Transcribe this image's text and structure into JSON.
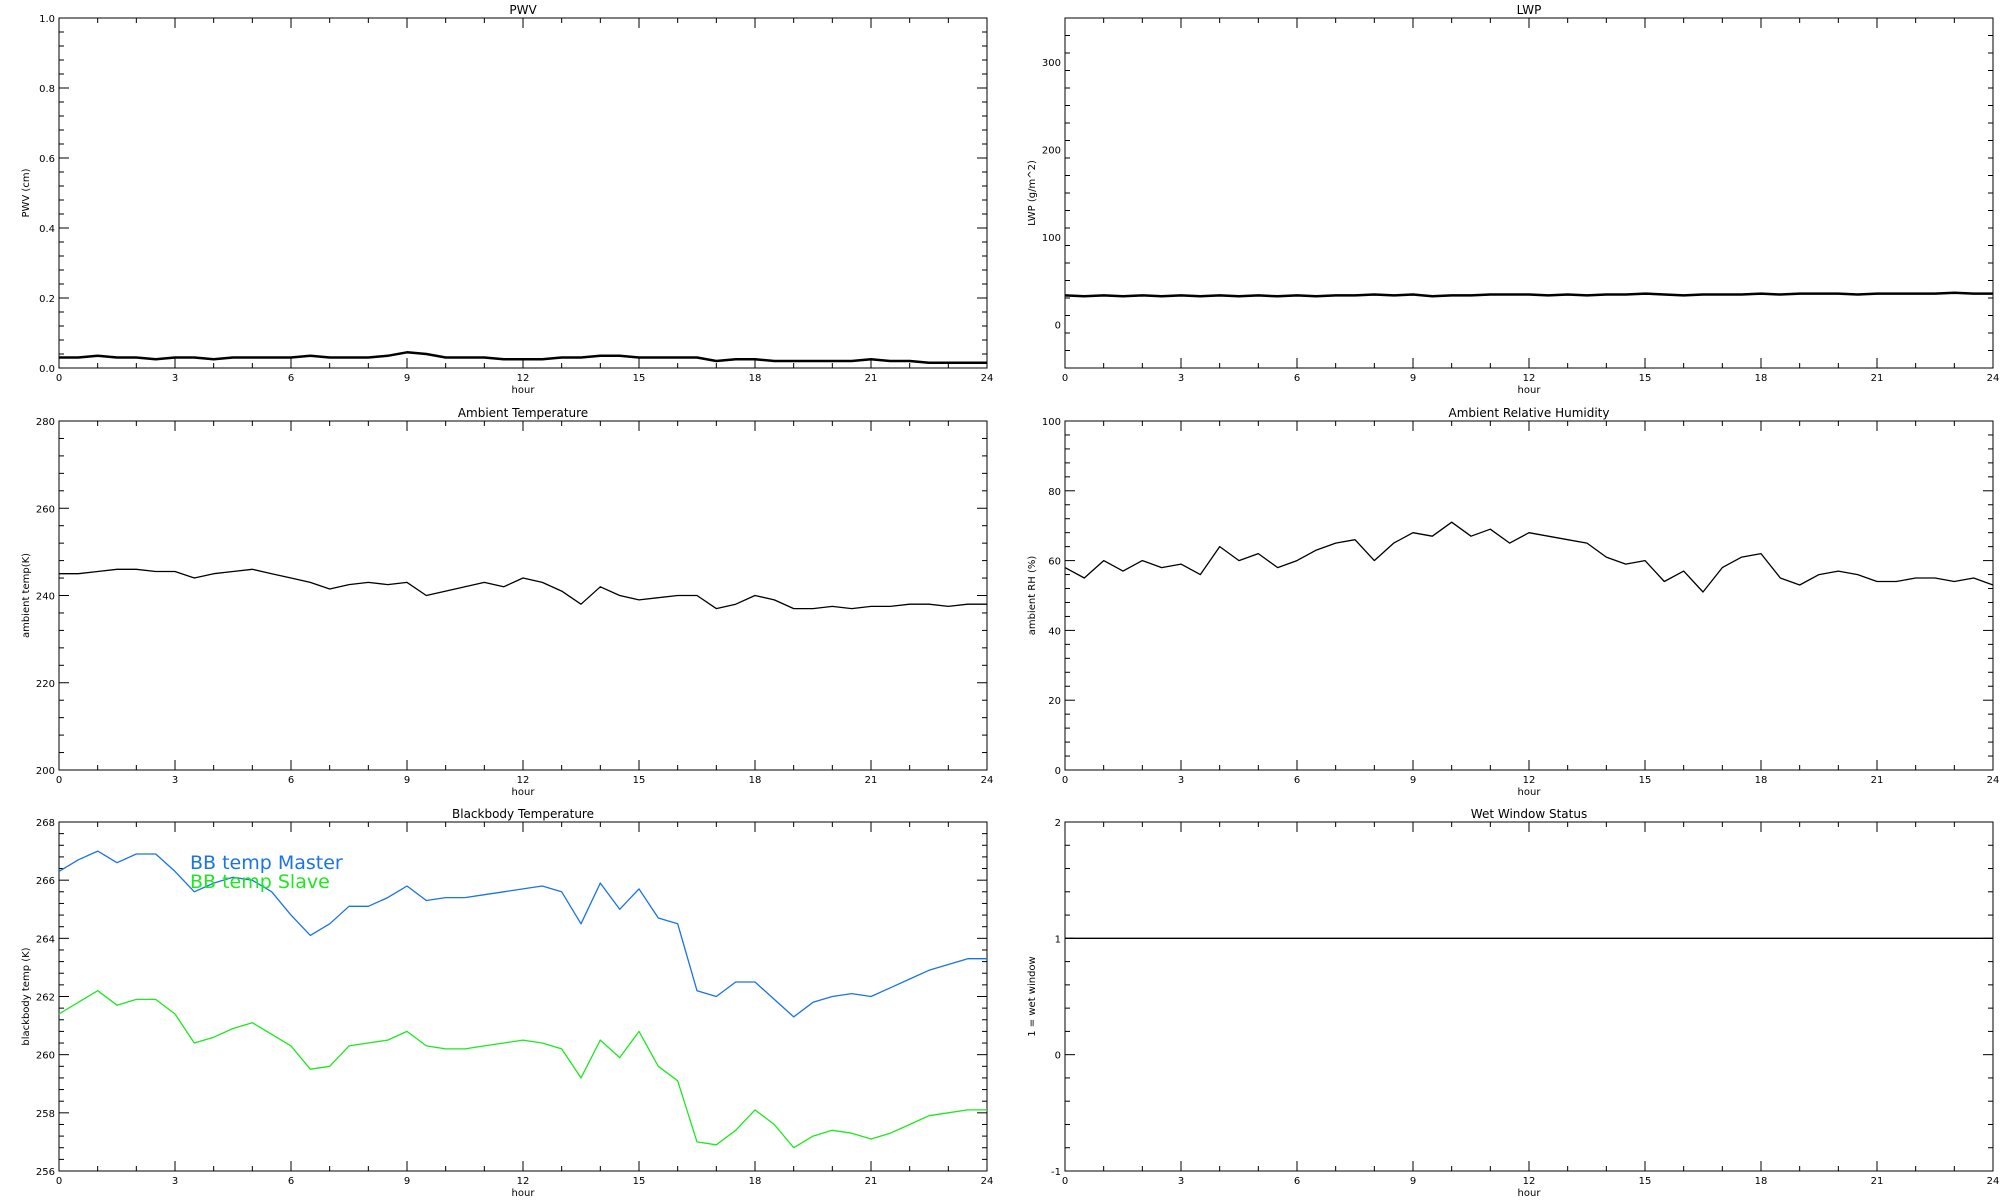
{
  "chart_data": [
    {
      "type": "line",
      "title": "PWV",
      "xlabel": "hour",
      "ylabel": "PWV (cm)",
      "xlim": [
        0,
        24
      ],
      "ylim": [
        0,
        1.0
      ],
      "xticks": [
        0,
        3,
        6,
        9,
        12,
        15,
        18,
        21,
        24
      ],
      "yticks": [
        0,
        0.2,
        0.4,
        0.6,
        0.8,
        1.0
      ],
      "ytick_labels": [
        "0.0",
        "0.2",
        "0.4",
        "0.6",
        "0.8",
        "1.0"
      ],
      "grid": false,
      "series": [
        {
          "color": "#000000",
          "x": [
            0,
            0.5,
            1,
            1.5,
            2,
            2.5,
            3,
            3.5,
            4,
            4.5,
            5,
            5.5,
            6,
            6.5,
            7,
            7.5,
            8,
            8.5,
            9,
            9.5,
            10,
            10.5,
            11,
            11.5,
            12,
            12.5,
            13,
            13.5,
            14,
            14.5,
            15,
            15.5,
            16,
            16.5,
            17,
            17.5,
            18,
            18.5,
            19,
            19.5,
            20,
            20.5,
            21,
            21.5,
            22,
            22.5,
            23,
            23.5,
            24
          ],
          "values": [
            0.03,
            0.03,
            0.035,
            0.03,
            0.03,
            0.025,
            0.03,
            0.03,
            0.025,
            0.03,
            0.03,
            0.03,
            0.03,
            0.035,
            0.03,
            0.03,
            0.03,
            0.035,
            0.045,
            0.04,
            0.03,
            0.03,
            0.03,
            0.025,
            0.025,
            0.025,
            0.03,
            0.03,
            0.035,
            0.035,
            0.03,
            0.03,
            0.03,
            0.03,
            0.02,
            0.025,
            0.025,
            0.02,
            0.02,
            0.02,
            0.02,
            0.02,
            0.025,
            0.02,
            0.02,
            0.015,
            0.015,
            0.015,
            0.015
          ]
        }
      ]
    },
    {
      "type": "line",
      "title": "LWP",
      "xlabel": "hour",
      "ylabel": "LWP (g/m^2)",
      "xlim": [
        0,
        24
      ],
      "ylim": [
        -50,
        350
      ],
      "xticks": [
        0,
        3,
        6,
        9,
        12,
        15,
        18,
        21,
        24
      ],
      "yticks": [
        0,
        100,
        200,
        300
      ],
      "ytick_labels": [
        "0",
        "100",
        "200",
        "300"
      ],
      "grid": false,
      "series": [
        {
          "color": "#000000",
          "x": [
            0,
            0.5,
            1,
            1.5,
            2,
            2.5,
            3,
            3.5,
            4,
            4.5,
            5,
            5.5,
            6,
            6.5,
            7,
            7.5,
            8,
            8.5,
            9,
            9.5,
            10,
            10.5,
            11,
            11.5,
            12,
            12.5,
            13,
            13.5,
            14,
            14.5,
            15,
            15.5,
            16,
            16.5,
            17,
            17.5,
            18,
            18.5,
            19,
            19.5,
            20,
            20.5,
            21,
            21.5,
            22,
            22.5,
            23,
            23.5,
            24
          ],
          "values": [
            33,
            32,
            33,
            32,
            33,
            32,
            33,
            32,
            33,
            32,
            33,
            32,
            33,
            32,
            33,
            33,
            34,
            33,
            34,
            32,
            33,
            33,
            34,
            34,
            34,
            33,
            34,
            33,
            34,
            34,
            35,
            34,
            33,
            34,
            34,
            34,
            35,
            34,
            35,
            35,
            35,
            34,
            35,
            35,
            35,
            35,
            36,
            35,
            35
          ]
        }
      ]
    },
    {
      "type": "line",
      "title": "Ambient Temperature",
      "xlabel": "hour",
      "ylabel": "ambient temp(K)",
      "xlim": [
        0,
        24
      ],
      "ylim": [
        200,
        280
      ],
      "xticks": [
        0,
        3,
        6,
        9,
        12,
        15,
        18,
        21,
        24
      ],
      "yticks": [
        200,
        220,
        240,
        260,
        280
      ],
      "ytick_labels": [
        "200",
        "220",
        "240",
        "260",
        "280"
      ],
      "grid": false,
      "series": [
        {
          "color": "#000000",
          "x": [
            0,
            0.5,
            1,
            1.5,
            2,
            2.5,
            3,
            3.5,
            4,
            4.5,
            5,
            5.5,
            6,
            6.5,
            7,
            7.5,
            8,
            8.5,
            9,
            9.5,
            10,
            10.5,
            11,
            11.5,
            12,
            12.5,
            13,
            13.5,
            14,
            14.5,
            15,
            15.5,
            16,
            16.5,
            17,
            17.5,
            18,
            18.5,
            19,
            19.5,
            20,
            20.5,
            21,
            21.5,
            22,
            22.5,
            23,
            23.5,
            24
          ],
          "values": [
            245,
            245,
            245.5,
            246,
            246,
            245.5,
            245.5,
            244,
            245,
            245.5,
            246,
            245,
            244,
            243,
            241.5,
            242.5,
            243,
            242.5,
            243,
            240,
            241,
            242,
            243,
            242,
            244,
            243,
            241,
            238,
            242,
            240,
            239,
            239.5,
            240,
            240,
            237,
            238,
            240,
            239,
            237,
            237,
            237.5,
            237,
            237.5,
            237.5,
            238,
            238,
            237.5,
            238,
            238
          ]
        }
      ]
    },
    {
      "type": "line",
      "title": "Ambient Relative Humidity",
      "xlabel": "hour",
      "ylabel": "ambient RH (%)",
      "xlim": [
        0,
        24
      ],
      "ylim": [
        0,
        100
      ],
      "xticks": [
        0,
        3,
        6,
        9,
        12,
        15,
        18,
        21,
        24
      ],
      "yticks": [
        0,
        20,
        40,
        60,
        80,
        100
      ],
      "ytick_labels": [
        "0",
        "20",
        "40",
        "60",
        "80",
        "100"
      ],
      "grid": false,
      "series": [
        {
          "color": "#000000",
          "x": [
            0,
            0.5,
            1,
            1.5,
            2,
            2.5,
            3,
            3.5,
            4,
            4.5,
            5,
            5.5,
            6,
            6.5,
            7,
            7.5,
            8,
            8.5,
            9,
            9.5,
            10,
            10.5,
            11,
            11.5,
            12,
            12.5,
            13,
            13.5,
            14,
            14.5,
            15,
            15.5,
            16,
            16.5,
            17,
            17.5,
            18,
            18.5,
            19,
            19.5,
            20,
            20.5,
            21,
            21.5,
            22,
            22.5,
            23,
            23.5,
            24
          ],
          "values": [
            58,
            55,
            60,
            57,
            60,
            58,
            59,
            56,
            64,
            60,
            62,
            58,
            60,
            63,
            65,
            66,
            60,
            65,
            68,
            67,
            71,
            67,
            69,
            65,
            68,
            67,
            66,
            65,
            61,
            59,
            60,
            54,
            57,
            51,
            58,
            61,
            62,
            55,
            53,
            56,
            57,
            56,
            54,
            54,
            55,
            55,
            54,
            55,
            53
          ]
        }
      ]
    },
    {
      "type": "line",
      "title": "Blackbody Temperature",
      "xlabel": "hour",
      "ylabel": "blackbody temp (K)",
      "xlim": [
        0,
        24
      ],
      "ylim": [
        256,
        268
      ],
      "xticks": [
        0,
        3,
        6,
        9,
        12,
        15,
        18,
        21,
        24
      ],
      "yticks": [
        256,
        258,
        260,
        262,
        264,
        266,
        268
      ],
      "ytick_labels": [
        "256",
        "258",
        "260",
        "262",
        "264",
        "266",
        "268"
      ],
      "grid": false,
      "series": [
        {
          "name": "BB temp Master",
          "color": "#1a73e8",
          "x": [
            0,
            0.5,
            1,
            1.5,
            2,
            2.5,
            3,
            3.5,
            4,
            4.5,
            5,
            5.5,
            6,
            6.5,
            7,
            7.5,
            8,
            8.5,
            9,
            9.5,
            10,
            10.5,
            11,
            11.5,
            12,
            12.5,
            13,
            13.5,
            14,
            14.5,
            15,
            15.5,
            16,
            16.5,
            17,
            17.5,
            18,
            18.5,
            19,
            19.5,
            20,
            20.5,
            21,
            21.5,
            22,
            22.5,
            23,
            23.5,
            24
          ],
          "values": [
            266.3,
            266.7,
            267.0,
            266.6,
            266.9,
            266.9,
            266.3,
            265.6,
            265.9,
            266.1,
            266.0,
            265.6,
            264.8,
            264.1,
            264.5,
            265.1,
            265.1,
            265.4,
            265.8,
            265.3,
            265.4,
            265.4,
            265.5,
            265.6,
            265.7,
            265.8,
            265.6,
            264.5,
            265.9,
            265.0,
            265.7,
            264.7,
            264.5,
            262.2,
            262.0,
            262.5,
            262.5,
            261.9,
            261.3,
            261.8,
            262.0,
            262.1,
            262.0,
            262.3,
            262.6,
            262.9,
            263.1,
            263.3,
            263.3
          ]
        },
        {
          "name": "BB temp Slave",
          "color": "#1ee81e",
          "x": [
            0,
            0.5,
            1,
            1.5,
            2,
            2.5,
            3,
            3.5,
            4,
            4.5,
            5,
            5.5,
            6,
            6.5,
            7,
            7.5,
            8,
            8.5,
            9,
            9.5,
            10,
            10.5,
            11,
            11.5,
            12,
            12.5,
            13,
            13.5,
            14,
            14.5,
            15,
            15.5,
            16,
            16.5,
            17,
            17.5,
            18,
            18.5,
            19,
            19.5,
            20,
            20.5,
            21,
            21.5,
            22,
            22.5,
            23,
            23.5,
            24
          ],
          "values": [
            261.4,
            261.8,
            262.2,
            261.7,
            261.9,
            261.9,
            261.4,
            260.4,
            260.6,
            260.9,
            261.1,
            260.7,
            260.3,
            259.5,
            259.6,
            260.3,
            260.4,
            260.5,
            260.8,
            260.3,
            260.2,
            260.2,
            260.3,
            260.4,
            260.5,
            260.4,
            260.2,
            259.2,
            260.5,
            259.9,
            260.8,
            259.6,
            259.1,
            257.0,
            256.9,
            257.4,
            258.1,
            257.6,
            256.8,
            257.2,
            257.4,
            257.3,
            257.1,
            257.3,
            257.6,
            257.9,
            258.0,
            258.1,
            258.1
          ]
        }
      ],
      "legend": [
        "BB temp Master",
        "BB temp Slave"
      ]
    },
    {
      "type": "line",
      "title": "Wet Window Status",
      "xlabel": "hour",
      "ylabel": "1 = wet window",
      "xlim": [
        0,
        24
      ],
      "ylim": [
        -1,
        2
      ],
      "xticks": [
        0,
        3,
        6,
        9,
        12,
        15,
        18,
        21,
        24
      ],
      "yticks": [
        -1,
        0,
        1,
        2
      ],
      "ytick_labels": [
        "-1",
        "0",
        "1",
        "2"
      ],
      "grid": false,
      "series": [
        {
          "color": "#000000",
          "x": [
            0,
            24
          ],
          "values": [
            1,
            1
          ]
        }
      ]
    }
  ]
}
